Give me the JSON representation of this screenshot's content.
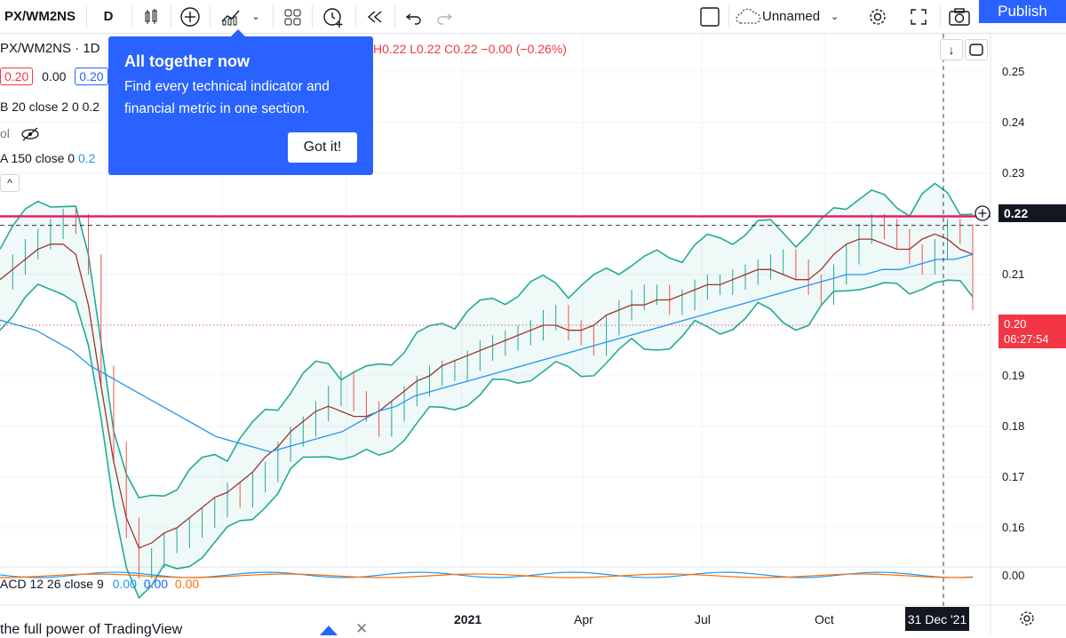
{
  "toolbar": {
    "symbol": "PX/WM2NS",
    "interval": "D",
    "layout_name": "Unnamed",
    "publish_label": "Publish"
  },
  "legend": {
    "symbol_line": "PX/WM2NS · 1D",
    "ohlc": "H0.22  L0.22  C0.22  −0.00 (−0.26%)",
    "bid": "0.20",
    "spread": "0.00",
    "ask": "0.20",
    "bb_label": "B 20 close 2 0",
    "bb_value": "0.2",
    "vol_label": "ol",
    "ma_label": "A 150 close 0",
    "ma_value": "0.2"
  },
  "tooltip": {
    "title": "All together now",
    "body": "Find every technical indicator and financial metric in one section.",
    "button": "Got it!"
  },
  "price_axis": {
    "ticks": [
      "0.25",
      "0.24",
      "0.23",
      "0.22",
      "0.21",
      "0.20",
      "0.19",
      "0.18",
      "0.17",
      "0.16"
    ],
    "current_price": "0.22",
    "last_price": "0.20",
    "countdown": "06:27:54",
    "macd_tick": "0.00"
  },
  "time_axis": {
    "labels": [
      "2021",
      "Apr",
      "Jul",
      "Oct"
    ],
    "crosshair_date": "31 Dec '21"
  },
  "macd": {
    "label": "ACD 12 26 close 9",
    "v1": "0.00",
    "v2": "0.00",
    "v3": "0.00"
  },
  "bottom": {
    "promo": "the full power of TradingView"
  },
  "chart_data": {
    "type": "line",
    "series": [
      {
        "name": "Price",
        "values": [
          0.209,
          0.212,
          0.215,
          0.217,
          0.219,
          0.221,
          0.22,
          0.212,
          0.19,
          0.175,
          0.16,
          0.152,
          0.154,
          0.157,
          0.158,
          0.16,
          0.162,
          0.164,
          0.167,
          0.166,
          0.169,
          0.171,
          0.175,
          0.178,
          0.18,
          0.183,
          0.186,
          0.189,
          0.185,
          0.183,
          0.18,
          0.183,
          0.186,
          0.188,
          0.19,
          0.191,
          0.191,
          0.193,
          0.195,
          0.196,
          0.197,
          0.198,
          0.199,
          0.201,
          0.202,
          0.199,
          0.198,
          0.196,
          0.2,
          0.203,
          0.205,
          0.206,
          0.206,
          0.204,
          0.205,
          0.207,
          0.208,
          0.208,
          0.209,
          0.21,
          0.211,
          0.212,
          0.213,
          0.211,
          0.208,
          0.206,
          0.21,
          0.214,
          0.218,
          0.22,
          0.219,
          0.217,
          0.214,
          0.212,
          0.215,
          0.219,
          0.218,
          0.205
        ]
      },
      {
        "name": "BB basis",
        "values": [
          0.209,
          0.211,
          0.213,
          0.215,
          0.216,
          0.216,
          0.214,
          0.204,
          0.188,
          0.173,
          0.162,
          0.156,
          0.157,
          0.159,
          0.16,
          0.162,
          0.164,
          0.166,
          0.167,
          0.169,
          0.171,
          0.174,
          0.176,
          0.179,
          0.181,
          0.183,
          0.184,
          0.183,
          0.182,
          0.182,
          0.183,
          0.185,
          0.187,
          0.189,
          0.19,
          0.192,
          0.193,
          0.194,
          0.195,
          0.196,
          0.197,
          0.198,
          0.199,
          0.2,
          0.2,
          0.199,
          0.199,
          0.2,
          0.202,
          0.203,
          0.204,
          0.204,
          0.205,
          0.205,
          0.206,
          0.207,
          0.208,
          0.208,
          0.209,
          0.21,
          0.211,
          0.211,
          0.21,
          0.209,
          0.209,
          0.211,
          0.214,
          0.216,
          0.217,
          0.217,
          0.216,
          0.215,
          0.215,
          0.217,
          0.218,
          0.217,
          0.215,
          0.214
        ]
      },
      {
        "name": "MA 150",
        "values": [
          0.201,
          0.2,
          0.199,
          0.197,
          0.195,
          0.192,
          0.19,
          0.188,
          0.186,
          0.184,
          0.182,
          0.18,
          0.178,
          0.177,
          0.176,
          0.175,
          0.176,
          0.177,
          0.178,
          0.179,
          0.181,
          0.183,
          0.184,
          0.186,
          0.187,
          0.188,
          0.189,
          0.19,
          0.191,
          0.192,
          0.193,
          0.194,
          0.195,
          0.196,
          0.197,
          0.198,
          0.199,
          0.2,
          0.201,
          0.202,
          0.203,
          0.204,
          0.205,
          0.206,
          0.207,
          0.208,
          0.209,
          0.21,
          0.21,
          0.211,
          0.211,
          0.212,
          0.213,
          0.213,
          0.214
        ]
      }
    ],
    "horizontal_lines": [
      0.2197,
      0.2215
    ],
    "ylim": [
      0.155,
      0.255
    ],
    "xlabel": "",
    "ylabel": ""
  }
}
